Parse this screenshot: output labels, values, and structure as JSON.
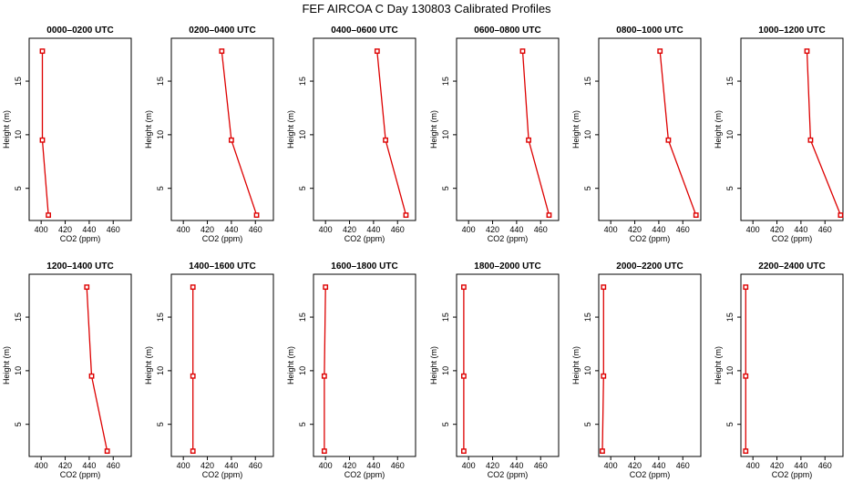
{
  "title": "FEF AIRCOA C  Day 130803  Calibrated Profiles",
  "chart_data": {
    "type": "line",
    "xlabel": "CO2 (ppm)",
    "ylabel": "Height (m)",
    "xlim": [
      390,
      475
    ],
    "ylim": [
      2,
      19
    ],
    "xticks": [
      "400",
      "420",
      "440",
      "460"
    ],
    "yticks": [
      "5",
      "10",
      "15"
    ],
    "heights": [
      2.5,
      9.5,
      17.8
    ],
    "panels": [
      {
        "title": "0000–0200 UTC",
        "values": [
          406,
          401,
          401
        ]
      },
      {
        "title": "0200–0400 UTC",
        "values": [
          461,
          440,
          432
        ]
      },
      {
        "title": "0400–0600 UTC",
        "values": [
          467,
          450,
          443
        ]
      },
      {
        "title": "0600–0800 UTC",
        "values": [
          467,
          450,
          445
        ]
      },
      {
        "title": "0800–1000 UTC",
        "values": [
          471,
          448,
          441
        ]
      },
      {
        "title": "1000–1200 UTC",
        "values": [
          473,
          448,
          445
        ]
      },
      {
        "title": "1200–1400 UTC",
        "values": [
          455,
          442,
          438
        ]
      },
      {
        "title": "1400–1600 UTC",
        "values": [
          408,
          408,
          408
        ]
      },
      {
        "title": "1600–1800 UTC",
        "values": [
          399,
          399,
          400
        ]
      },
      {
        "title": "1800–2000 UTC",
        "values": [
          396,
          396,
          396
        ]
      },
      {
        "title": "2000–2200 UTC",
        "values": [
          393,
          394,
          394
        ]
      },
      {
        "title": "2200–2400 UTC",
        "values": [
          394,
          394,
          394
        ]
      }
    ]
  }
}
